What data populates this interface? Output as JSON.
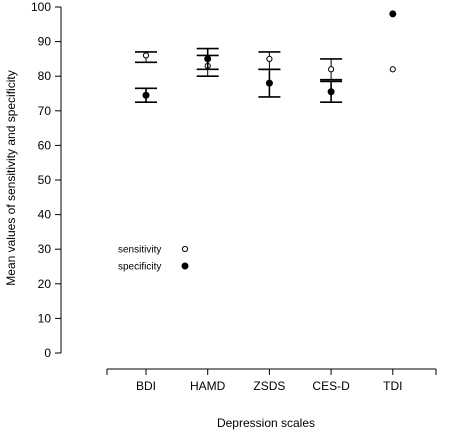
{
  "chart_data": {
    "type": "scatter",
    "title": "",
    "xlabel": "Depression scales",
    "ylabel": "Mean values of sensitivity and specificity",
    "categories": [
      "BDI",
      "HAMD",
      "ZSDS",
      "CES-D",
      "TDI"
    ],
    "ylim": [
      0,
      100
    ],
    "yticks": [
      0,
      10,
      20,
      30,
      40,
      50,
      60,
      70,
      80,
      90,
      100
    ],
    "grid": false,
    "legend_position": "left",
    "series": [
      {
        "name": "sensitivity",
        "marker": "open-circle",
        "color": "#000000",
        "values": [
          86,
          83,
          85,
          82,
          82
        ],
        "error_low": [
          84,
          80,
          82,
          79,
          null
        ],
        "error_high": [
          87,
          86,
          87,
          85,
          null
        ]
      },
      {
        "name": "specificity",
        "marker": "filled-circle",
        "color": "#000000",
        "values": [
          74.5,
          85,
          78,
          75.5,
          98
        ],
        "error_low": [
          72.5,
          82,
          74,
          72.5,
          null
        ],
        "error_high": [
          76.5,
          88,
          82,
          78.5,
          null
        ]
      }
    ]
  }
}
